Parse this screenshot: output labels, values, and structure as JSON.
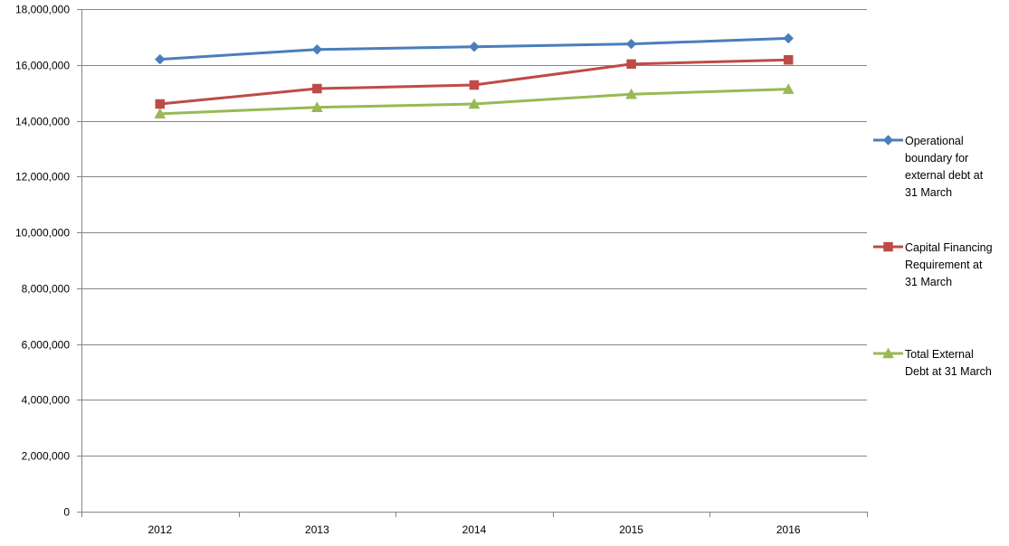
{
  "chart_data": {
    "type": "line",
    "title": "",
    "xlabel": "",
    "ylabel": "",
    "categories": [
      "2012",
      "2013",
      "2014",
      "2015",
      "2016"
    ],
    "ylim": [
      0,
      18000000
    ],
    "yticks": [
      0,
      2000000,
      4000000,
      6000000,
      8000000,
      10000000,
      12000000,
      14000000,
      16000000,
      18000000
    ],
    "ytick_labels": [
      "0",
      "2,000,000",
      "4,000,000",
      "6,000,000",
      "8,000,000",
      "10,000,000",
      "12,000,000",
      "14,000,000",
      "16,000,000",
      "18,000,000"
    ],
    "grid": true,
    "legend_position": "right",
    "series": [
      {
        "name": "Operational boundary for external debt at 31 March",
        "legend_lines": [
          "Operational",
          "boundary for",
          "external debt at",
          "31 March"
        ],
        "color": "#4a7ebb",
        "marker": "diamond",
        "values": [
          16200000,
          16550000,
          16650000,
          16750000,
          16950000
        ]
      },
      {
        "name": "Capital Financing Requirement at 31 March",
        "legend_lines": [
          "Capital Financing",
          "Requirement at",
          "31 March"
        ],
        "color": "#be4b48",
        "marker": "square",
        "values": [
          14600000,
          15150000,
          15280000,
          16030000,
          16180000
        ]
      },
      {
        "name": "Total External Debt at 31 March",
        "legend_lines": [
          "Total External",
          "Debt at 31 March"
        ],
        "color": "#98b954",
        "marker": "triangle",
        "values": [
          14250000,
          14480000,
          14600000,
          14950000,
          15130000
        ]
      }
    ]
  }
}
